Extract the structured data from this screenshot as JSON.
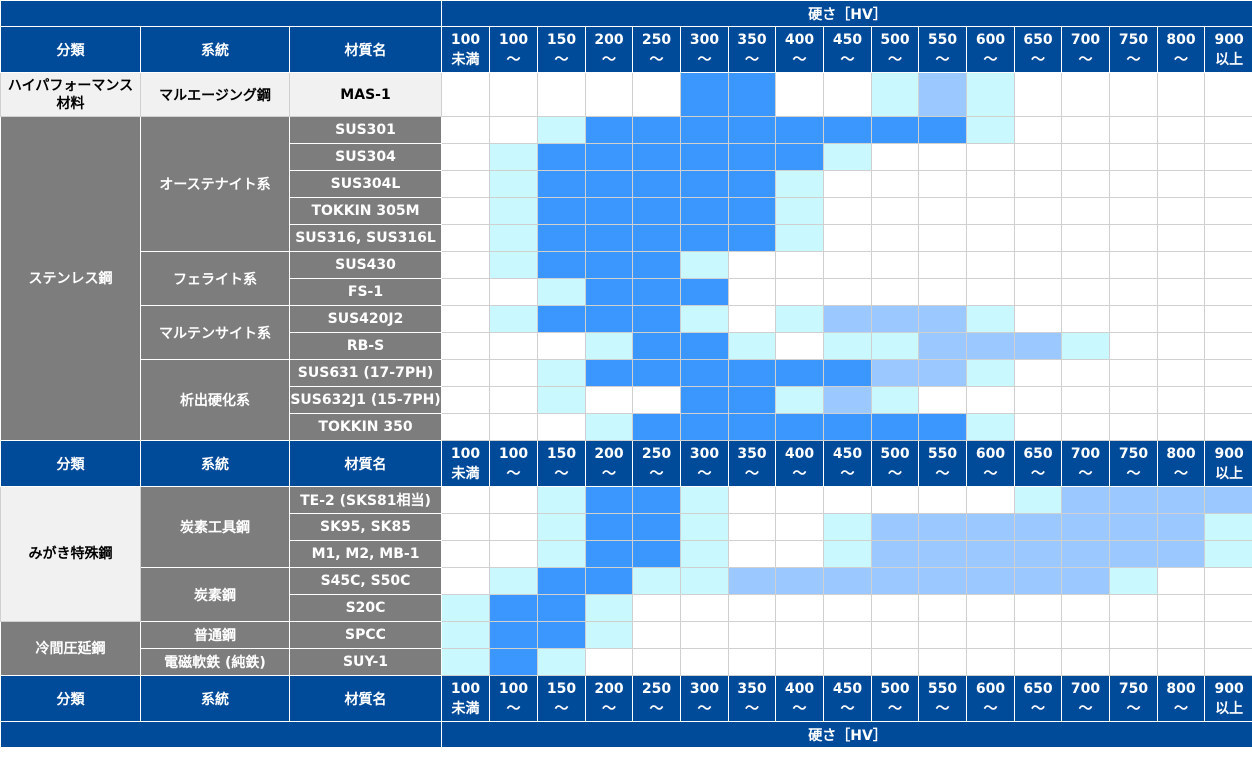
{
  "header": {
    "hardness_title": "硬さ［HV］",
    "col_category": "分類",
    "col_system": "系統",
    "col_material": "材質名",
    "hv_bins": [
      {
        "top": "100",
        "bottom": "未満"
      },
      {
        "top": "100",
        "bottom": "～"
      },
      {
        "top": "150",
        "bottom": "～"
      },
      {
        "top": "200",
        "bottom": "～"
      },
      {
        "top": "250",
        "bottom": "～"
      },
      {
        "top": "300",
        "bottom": "～"
      },
      {
        "top": "350",
        "bottom": "～"
      },
      {
        "top": "400",
        "bottom": "～"
      },
      {
        "top": "450",
        "bottom": "～"
      },
      {
        "top": "500",
        "bottom": "～"
      },
      {
        "top": "550",
        "bottom": "～"
      },
      {
        "top": "600",
        "bottom": "～"
      },
      {
        "top": "650",
        "bottom": "～"
      },
      {
        "top": "700",
        "bottom": "～"
      },
      {
        "top": "750",
        "bottom": "～"
      },
      {
        "top": "800",
        "bottom": "～"
      },
      {
        "top": "900",
        "bottom": "以上"
      }
    ]
  },
  "colors": {
    "header_blue": "#004a9a",
    "level_0": "#ffffff",
    "level_1": "#c9f9ff",
    "level_2": "#3b96fe",
    "level_3": "#9bc9ff"
  },
  "chart_data": {
    "type": "heatmap",
    "xlabel": "硬さ［HV］",
    "x": [
      "100未満",
      "100～",
      "150～",
      "200～",
      "250～",
      "300～",
      "350～",
      "400～",
      "450～",
      "500～",
      "550～",
      "600～",
      "650～",
      "700～",
      "750～",
      "800～",
      "900以上"
    ],
    "sections": [
      {
        "category": "ハイパフォーマンス材料",
        "groups": [
          {
            "system": "マルエージング鋼",
            "rows": [
              {
                "material": "MAS-1",
                "levels": [
                  0,
                  0,
                  0,
                  0,
                  0,
                  2,
                  2,
                  0,
                  0,
                  1,
                  3,
                  1,
                  0,
                  0,
                  0,
                  0,
                  0
                ]
              }
            ]
          }
        ]
      },
      {
        "category": "ステンレス鋼",
        "groups": [
          {
            "system": "オーステナイト系",
            "rows": [
              {
                "material": "SUS301",
                "levels": [
                  0,
                  0,
                  1,
                  2,
                  2,
                  2,
                  2,
                  2,
                  2,
                  2,
                  2,
                  1,
                  0,
                  0,
                  0,
                  0,
                  0
                ]
              },
              {
                "material": "SUS304",
                "levels": [
                  0,
                  1,
                  2,
                  2,
                  2,
                  2,
                  2,
                  2,
                  1,
                  0,
                  0,
                  0,
                  0,
                  0,
                  0,
                  0,
                  0
                ]
              },
              {
                "material": "SUS304L",
                "levels": [
                  0,
                  1,
                  2,
                  2,
                  2,
                  2,
                  2,
                  1,
                  0,
                  0,
                  0,
                  0,
                  0,
                  0,
                  0,
                  0,
                  0
                ]
              },
              {
                "material": "TOKKIN 305M",
                "levels": [
                  0,
                  1,
                  2,
                  2,
                  2,
                  2,
                  2,
                  1,
                  0,
                  0,
                  0,
                  0,
                  0,
                  0,
                  0,
                  0,
                  0
                ]
              },
              {
                "material": "SUS316, SUS316L",
                "levels": [
                  0,
                  1,
                  2,
                  2,
                  2,
                  2,
                  2,
                  1,
                  0,
                  0,
                  0,
                  0,
                  0,
                  0,
                  0,
                  0,
                  0
                ]
              }
            ]
          },
          {
            "system": "フェライト系",
            "rows": [
              {
                "material": "SUS430",
                "levels": [
                  0,
                  1,
                  2,
                  2,
                  2,
                  1,
                  0,
                  0,
                  0,
                  0,
                  0,
                  0,
                  0,
                  0,
                  0,
                  0,
                  0
                ]
              },
              {
                "material": "FS-1",
                "levels": [
                  0,
                  0,
                  1,
                  2,
                  2,
                  2,
                  0,
                  0,
                  0,
                  0,
                  0,
                  0,
                  0,
                  0,
                  0,
                  0,
                  0
                ]
              }
            ]
          },
          {
            "system": "マルテンサイト系",
            "rows": [
              {
                "material": "SUS420J2",
                "levels": [
                  0,
                  1,
                  2,
                  2,
                  2,
                  1,
                  0,
                  1,
                  3,
                  3,
                  3,
                  1,
                  0,
                  0,
                  0,
                  0,
                  0
                ]
              },
              {
                "material": "RB-S",
                "levels": [
                  0,
                  0,
                  0,
                  1,
                  2,
                  2,
                  1,
                  0,
                  1,
                  1,
                  3,
                  3,
                  3,
                  1,
                  0,
                  0,
                  0
                ]
              }
            ]
          },
          {
            "system": "析出硬化系",
            "rows": [
              {
                "material": "SUS631 (17-7PH)",
                "levels": [
                  0,
                  0,
                  1,
                  2,
                  2,
                  2,
                  2,
                  2,
                  2,
                  3,
                  3,
                  1,
                  0,
                  0,
                  0,
                  0,
                  0
                ]
              },
              {
                "material": "SUS632J1 (15-7PH)",
                "levels": [
                  0,
                  0,
                  1,
                  0,
                  0,
                  2,
                  2,
                  1,
                  3,
                  1,
                  0,
                  0,
                  0,
                  0,
                  0,
                  0,
                  0
                ]
              },
              {
                "material": "TOKKIN 350",
                "levels": [
                  0,
                  0,
                  0,
                  1,
                  2,
                  2,
                  2,
                  2,
                  2,
                  2,
                  2,
                  1,
                  0,
                  0,
                  0,
                  0,
                  0
                ]
              }
            ]
          }
        ]
      },
      {
        "category": "みがき特殊鋼",
        "groups": [
          {
            "system": "炭素工具鋼",
            "rows": [
              {
                "material": "TE-2 (SKS81相当)",
                "levels": [
                  0,
                  0,
                  1,
                  2,
                  2,
                  1,
                  0,
                  0,
                  0,
                  0,
                  0,
                  0,
                  1,
                  3,
                  3,
                  3,
                  3
                ]
              },
              {
                "material": "SK95, SK85",
                "levels": [
                  0,
                  0,
                  1,
                  2,
                  2,
                  1,
                  0,
                  0,
                  1,
                  3,
                  3,
                  3,
                  3,
                  3,
                  3,
                  3,
                  1
                ]
              },
              {
                "material": "M1, M2, MB-1",
                "levels": [
                  0,
                  0,
                  1,
                  2,
                  2,
                  1,
                  0,
                  0,
                  1,
                  3,
                  3,
                  3,
                  3,
                  3,
                  3,
                  3,
                  1
                ]
              }
            ]
          },
          {
            "system": "炭素鋼",
            "rows": [
              {
                "material": "S45C, S50C",
                "levels": [
                  0,
                  1,
                  2,
                  2,
                  1,
                  1,
                  3,
                  3,
                  3,
                  3,
                  3,
                  3,
                  3,
                  3,
                  1,
                  0,
                  0
                ]
              },
              {
                "material": "S20C",
                "levels": [
                  1,
                  2,
                  2,
                  1,
                  0,
                  0,
                  0,
                  0,
                  0,
                  0,
                  0,
                  0,
                  0,
                  0,
                  0,
                  0,
                  0
                ]
              }
            ]
          }
        ]
      },
      {
        "category": "冷間圧延鋼",
        "groups": [
          {
            "system": "普通鋼",
            "rows": [
              {
                "material": "SPCC",
                "levels": [
                  1,
                  2,
                  2,
                  1,
                  0,
                  0,
                  0,
                  0,
                  0,
                  0,
                  0,
                  0,
                  0,
                  0,
                  0,
                  0,
                  0
                ]
              }
            ]
          },
          {
            "system": "電磁軟鉄 (純鉄)",
            "rows": [
              {
                "material": "SUY-1",
                "levels": [
                  1,
                  2,
                  1,
                  0,
                  0,
                  0,
                  0,
                  0,
                  0,
                  0,
                  0,
                  0,
                  0,
                  0,
                  0,
                  0,
                  0
                ]
              }
            ]
          }
        ]
      }
    ]
  }
}
